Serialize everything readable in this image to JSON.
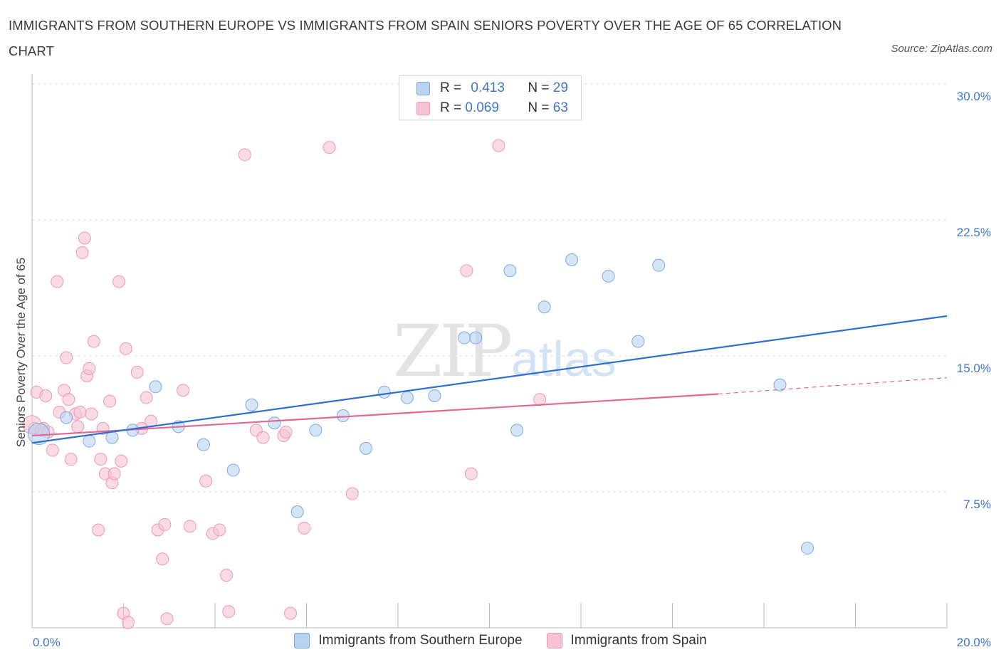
{
  "title": "IMMIGRANTS FROM SOUTHERN EUROPE VS IMMIGRANTS FROM SPAIN SENIORS POVERTY OVER THE AGE OF 65 CORRELATION CHART",
  "source": "Source: ZipAtlas.com",
  "watermark": {
    "zip": "ZIP",
    "atlas": "atlas"
  },
  "legend": {
    "rows": [
      {
        "r_label": "R = ",
        "r_value": "0.413",
        "n_label": "N = ",
        "n_value": "29"
      },
      {
        "r_label": "R = ",
        "r_value": "0.069",
        "n_label": "N = ",
        "n_value": "63"
      }
    ]
  },
  "colors": {
    "blue_fill": "#b9d3f3",
    "blue_stroke": "#7fa9e0",
    "blue_line": "#2f6fd0",
    "pink_fill": "#f7c3d3",
    "pink_stroke": "#ec99b4",
    "pink_line": "#e06a94",
    "grid": "#dedede",
    "axis_text": "#3f76c9"
  },
  "chart_data": {
    "type": "scatter",
    "title": "IMMIGRANTS FROM SOUTHERN EUROPE VS IMMIGRANTS FROM SPAIN SENIORS POVERTY OVER THE AGE OF 65 CORRELATION CHART",
    "xlabel": "",
    "ylabel": "Seniors Poverty Over the Age of 65",
    "xlim": [
      0,
      20
    ],
    "ylim": [
      0,
      30
    ],
    "x_tick_labels": [
      "0.0%",
      "20.0%"
    ],
    "y_ticks": [
      7.5,
      15.0,
      22.5,
      30.0
    ],
    "y_tick_labels": [
      "7.5%",
      "15.0%",
      "22.5%",
      "30.0%"
    ],
    "grid": "horizontal dashed",
    "legend_position": "top-center and bottom",
    "series": [
      {
        "name": "Immigrants from Southern Europe",
        "r": 0.413,
        "n": 29,
        "trend": {
          "x": [
            0,
            20
          ],
          "y": [
            10.2,
            17.2
          ]
        },
        "points": [
          [
            0.15,
            10.7
          ],
          [
            0.75,
            11.6
          ],
          [
            1.25,
            10.3
          ],
          [
            1.75,
            10.5
          ],
          [
            2.2,
            10.9
          ],
          [
            2.7,
            13.3
          ],
          [
            3.2,
            11.1
          ],
          [
            3.75,
            10.1
          ],
          [
            4.4,
            8.7
          ],
          [
            4.8,
            12.3
          ],
          [
            5.3,
            11.3
          ],
          [
            5.8,
            6.4
          ],
          [
            6.2,
            10.9
          ],
          [
            6.8,
            11.7
          ],
          [
            7.3,
            9.9
          ],
          [
            7.7,
            13.0
          ],
          [
            8.2,
            12.7
          ],
          [
            8.8,
            12.8
          ],
          [
            9.45,
            16.0
          ],
          [
            9.7,
            16.0
          ],
          [
            10.45,
            19.7
          ],
          [
            10.6,
            10.9
          ],
          [
            11.2,
            17.7
          ],
          [
            11.8,
            20.3
          ],
          [
            12.6,
            19.4
          ],
          [
            13.25,
            15.8
          ],
          [
            13.7,
            20.0
          ],
          [
            16.35,
            13.4
          ],
          [
            16.95,
            4.4
          ]
        ]
      },
      {
        "name": "Immigrants from Spain",
        "r": 0.069,
        "n": 63,
        "trend": {
          "x": [
            0,
            15
          ],
          "y": [
            10.6,
            12.9
          ]
        },
        "trend_dashed": {
          "x": [
            15,
            20
          ],
          "y": [
            12.9,
            13.8
          ]
        },
        "points": [
          [
            0.05,
            11.0
          ],
          [
            0.1,
            13.0
          ],
          [
            0.25,
            11.0
          ],
          [
            0.3,
            12.8
          ],
          [
            0.45,
            9.8
          ],
          [
            0.55,
            19.1
          ],
          [
            0.6,
            11.9
          ],
          [
            0.7,
            13.1
          ],
          [
            0.75,
            14.9
          ],
          [
            0.8,
            12.6
          ],
          [
            0.85,
            9.3
          ],
          [
            0.95,
            11.8
          ],
          [
            1.0,
            11.1
          ],
          [
            1.05,
            11.9
          ],
          [
            1.1,
            20.7
          ],
          [
            1.15,
            21.5
          ],
          [
            1.2,
            13.9
          ],
          [
            1.25,
            14.3
          ],
          [
            1.35,
            15.8
          ],
          [
            1.45,
            5.4
          ],
          [
            1.5,
            9.3
          ],
          [
            1.55,
            11.0
          ],
          [
            1.6,
            8.5
          ],
          [
            1.7,
            12.5
          ],
          [
            1.75,
            8.0
          ],
          [
            1.8,
            8.5
          ],
          [
            1.9,
            19.1
          ],
          [
            1.95,
            9.2
          ],
          [
            2.0,
            0.8
          ],
          [
            2.05,
            15.4
          ],
          [
            2.1,
            0.3
          ],
          [
            2.3,
            14.1
          ],
          [
            2.4,
            11.0
          ],
          [
            2.5,
            12.7
          ],
          [
            2.6,
            11.4
          ],
          [
            2.75,
            5.4
          ],
          [
            2.85,
            3.8
          ],
          [
            2.9,
            5.7
          ],
          [
            2.95,
            0.5
          ],
          [
            3.3,
            13.1
          ],
          [
            3.45,
            5.6
          ],
          [
            3.8,
            8.1
          ],
          [
            3.95,
            5.2
          ],
          [
            4.1,
            5.4
          ],
          [
            4.25,
            2.9
          ],
          [
            4.3,
            0.9
          ],
          [
            4.65,
            26.1
          ],
          [
            4.9,
            10.9
          ],
          [
            5.05,
            10.5
          ],
          [
            5.5,
            10.6
          ],
          [
            5.55,
            10.8
          ],
          [
            5.65,
            0.8
          ],
          [
            5.95,
            5.5
          ],
          [
            6.5,
            26.5
          ],
          [
            7.0,
            7.4
          ],
          [
            9.5,
            19.7
          ],
          [
            9.6,
            8.5
          ],
          [
            10.2,
            26.6
          ],
          [
            11.1,
            12.6
          ],
          [
            0.0,
            11.2
          ],
          [
            0.2,
            10.9
          ],
          [
            1.3,
            11.8
          ],
          [
            0.35,
            10.8
          ]
        ]
      }
    ]
  }
}
